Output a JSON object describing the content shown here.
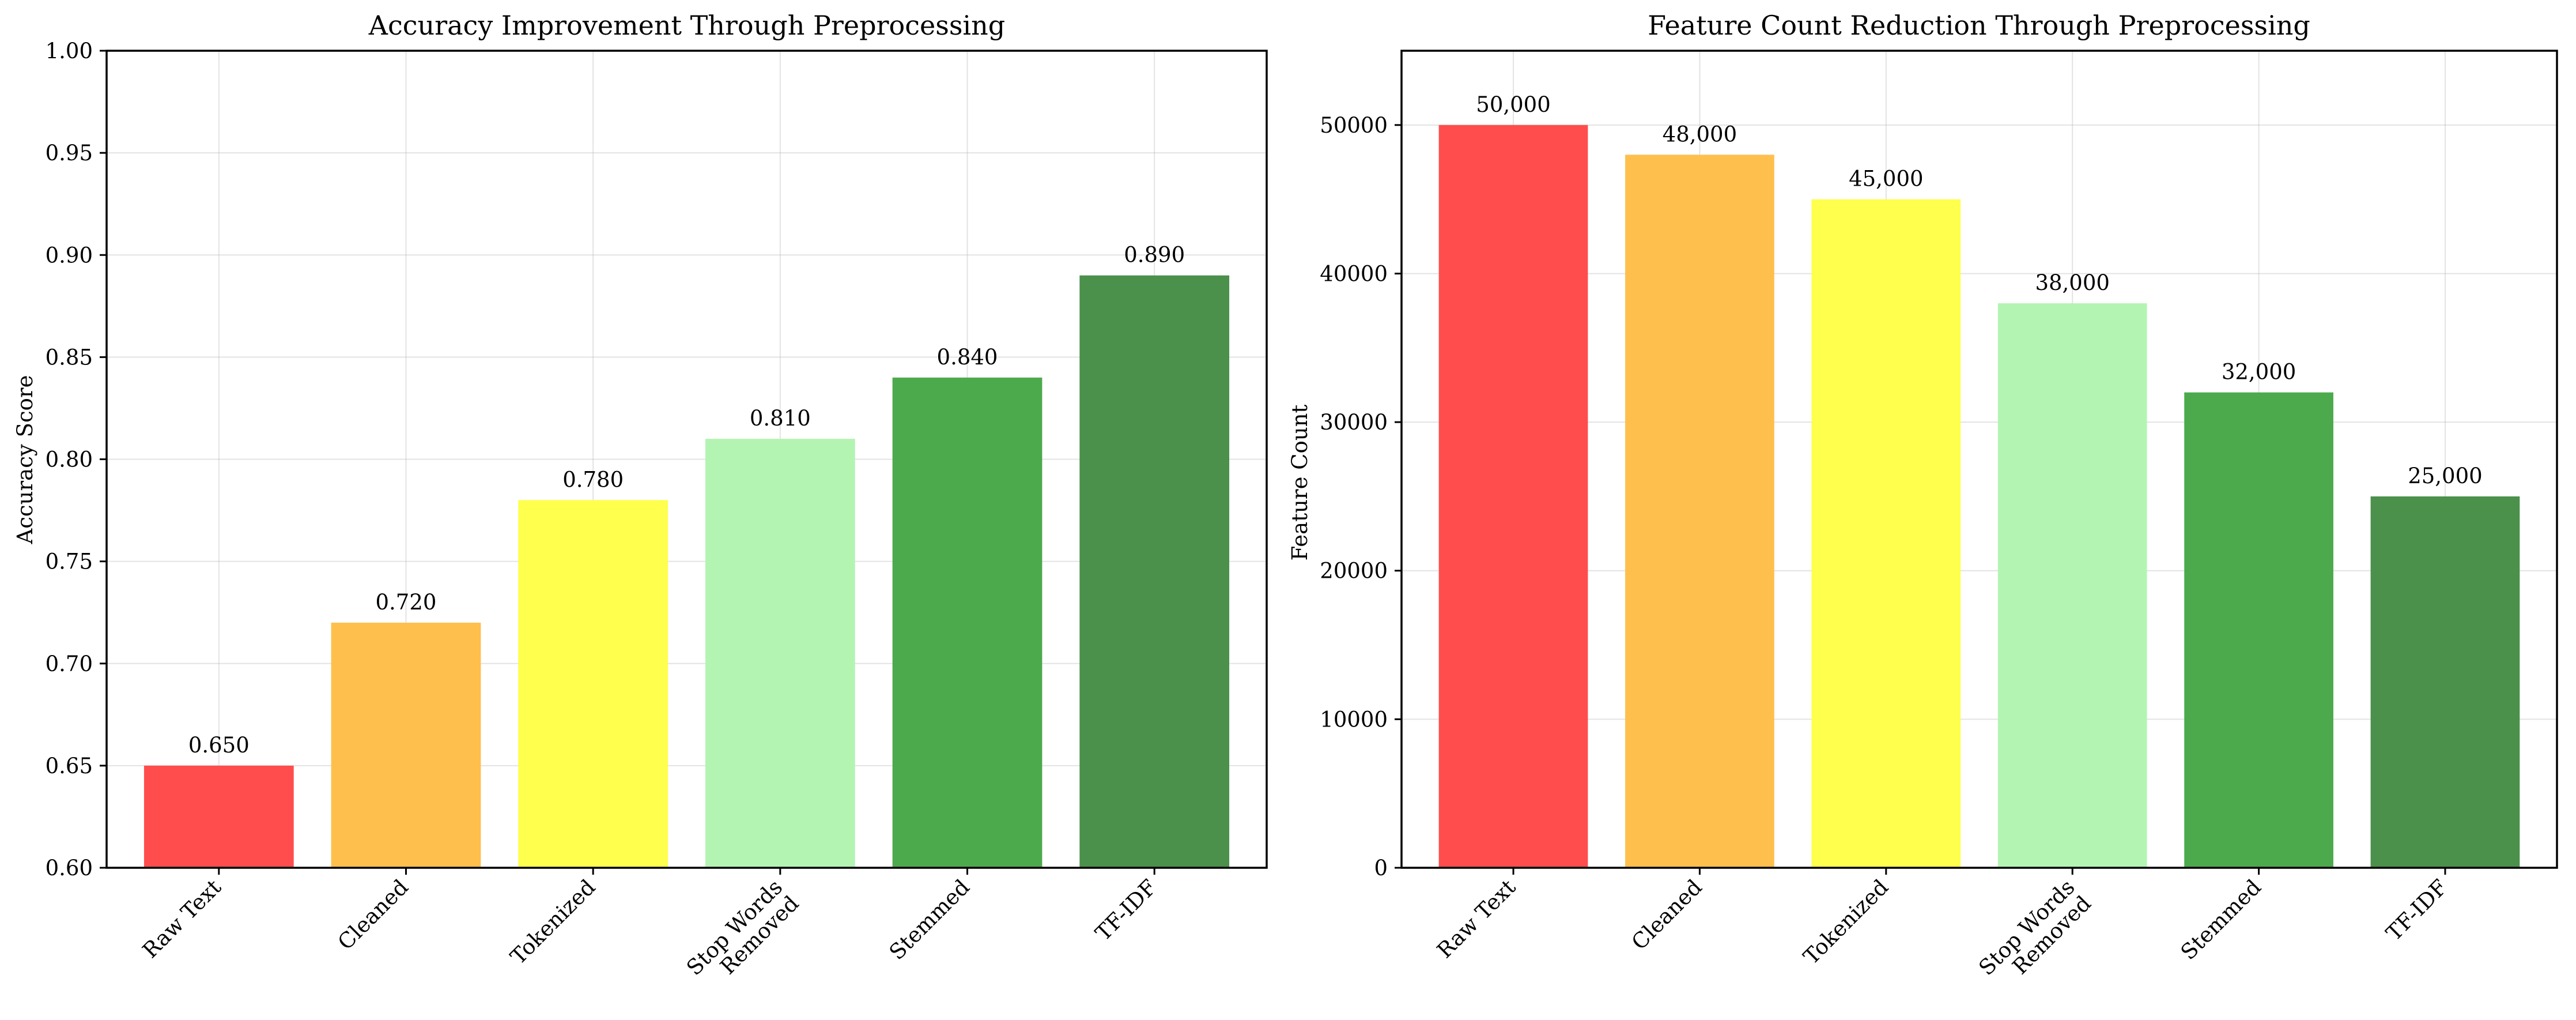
{
  "chart_data": [
    {
      "type": "bar",
      "title": "Accuracy Improvement Through Preprocessing",
      "xlabel": "",
      "ylabel": "Accuracy Score",
      "categories": [
        "Raw Text",
        "Cleaned",
        "Tokenized",
        "Stop Words\nRemoved",
        "Stemmed",
        "TF-IDF"
      ],
      "values": [
        0.65,
        0.72,
        0.78,
        0.81,
        0.84,
        0.89
      ],
      "value_labels": [
        "0.650",
        "0.720",
        "0.780",
        "0.810",
        "0.840",
        "0.890"
      ],
      "ylim": [
        0.6,
        1.0
      ],
      "yticks": [
        0.6,
        0.65,
        0.7,
        0.75,
        0.8,
        0.85,
        0.9,
        0.95,
        1.0
      ],
      "ytick_labels": [
        "0.60",
        "0.65",
        "0.70",
        "0.75",
        "0.80",
        "0.85",
        "0.90",
        "0.95",
        "1.00"
      ],
      "colors": [
        "#ff4d4d",
        "#ffbf4d",
        "#ffff4d",
        "#b3f4b3",
        "#4caa4c",
        "#4b904b"
      ],
      "grid": true
    },
    {
      "type": "bar",
      "title": "Feature Count Reduction Through Preprocessing",
      "xlabel": "",
      "ylabel": "Feature Count",
      "categories": [
        "Raw Text",
        "Cleaned",
        "Tokenized",
        "Stop Words\nRemoved",
        "Stemmed",
        "TF-IDF"
      ],
      "values": [
        50000,
        48000,
        45000,
        38000,
        32000,
        25000
      ],
      "value_labels": [
        "50,000",
        "48,000",
        "45,000",
        "38,000",
        "32,000",
        "25,000"
      ],
      "ylim": [
        0,
        55000
      ],
      "yticks": [
        0,
        10000,
        20000,
        30000,
        40000,
        50000
      ],
      "ytick_labels": [
        "0",
        "10000",
        "20000",
        "30000",
        "40000",
        "50000"
      ],
      "colors": [
        "#ff4d4d",
        "#ffbf4d",
        "#ffff4d",
        "#b3f4b3",
        "#4caa4c",
        "#4b904b"
      ],
      "grid": true
    }
  ]
}
